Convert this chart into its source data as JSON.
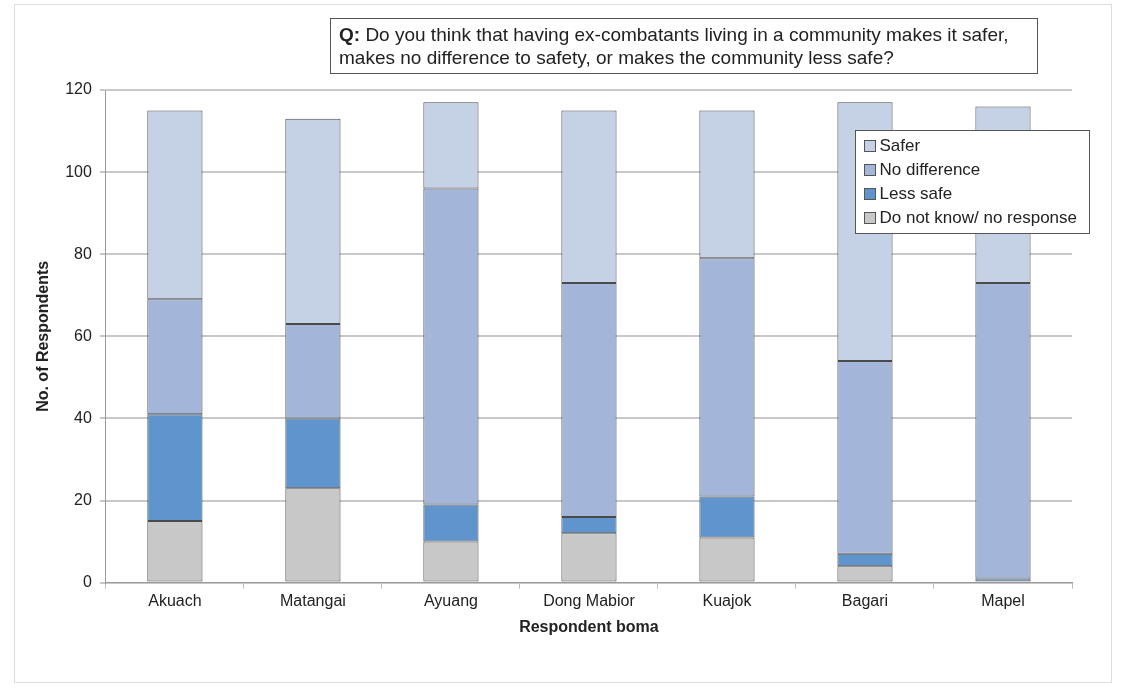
{
  "chart_data": {
    "type": "bar",
    "stacked": true,
    "title": "Q: Do you think that having ex-combatants living in a community makes it safer, makes no difference to safety, or makes the community less safe?",
    "xlabel": "Respondent boma",
    "ylabel": "No. of Respondents",
    "categories": [
      "Akuach",
      "Matangai",
      "Ayuang",
      "Dong Mabior",
      "Kuajok",
      "Bagari",
      "Mapel"
    ],
    "series": [
      {
        "name": "Do not know/ no response",
        "color": "#c8c8c8",
        "values": [
          15,
          23,
          10,
          12,
          11,
          4,
          0
        ]
      },
      {
        "name": "Less safe",
        "color": "#5f94cc",
        "values": [
          26,
          17,
          9,
          4,
          10,
          3,
          1
        ]
      },
      {
        "name": "No difference",
        "color": "#a3b6da",
        "values": [
          28,
          23,
          77,
          57,
          58,
          47,
          72
        ]
      },
      {
        "name": "Safer",
        "color": "#c5d1e4",
        "values": [
          46,
          50,
          21,
          42,
          36,
          63,
          43
        ]
      }
    ],
    "ylim": [
      0,
      120
    ],
    "yticks": [
      0,
      20,
      40,
      60,
      80,
      100,
      120
    ],
    "grid": "y",
    "legend": "top right"
  }
}
